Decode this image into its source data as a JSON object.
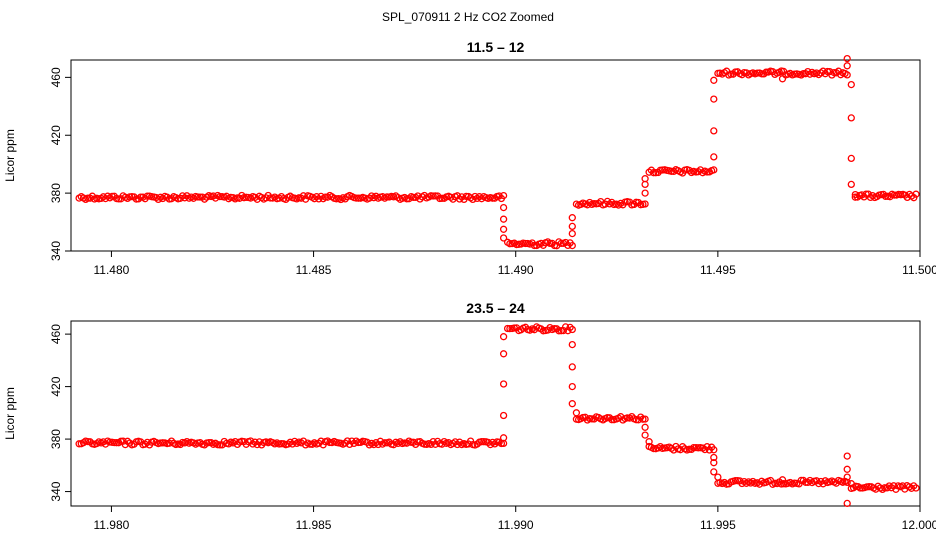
{
  "figure_title": "SPL_070911  2 Hz CO2 Zoomed",
  "colors": {
    "points": "#ff0000",
    "axis": "#000000",
    "background": "#ffffff"
  },
  "chart_data": [
    {
      "type": "scatter",
      "title": "11.5 – 12",
      "xlabel": "",
      "ylabel": "Licor ppm",
      "xlim": [
        11.479,
        11.5
      ],
      "ylim": [
        340,
        472
      ],
      "xticks": [
        {
          "value": 11.48,
          "label": "11.480"
        },
        {
          "value": 11.485,
          "label": "11.485"
        },
        {
          "value": 11.49,
          "label": "11.490"
        },
        {
          "value": 11.495,
          "label": "11.495"
        },
        {
          "value": 11.5,
          "label": "11.500"
        }
      ],
      "yticks": [
        {
          "value": 340,
          "label": "340"
        },
        {
          "value": 380,
          "label": "380"
        },
        {
          "value": 420,
          "label": "420"
        },
        {
          "value": 460,
          "label": "460"
        }
      ],
      "segments": [
        {
          "x0": 11.4792,
          "x1": 11.4897,
          "y": 377
        },
        {
          "x0": 11.4898,
          "x1": 11.4914,
          "y": 345
        },
        {
          "x0": 11.4915,
          "x1": 11.4932,
          "y": 373
        },
        {
          "x0": 11.4933,
          "x1": 11.4949,
          "y": 395
        },
        {
          "x0": 11.495,
          "x1": 11.4982,
          "y": 463
        },
        {
          "x0": 11.4984,
          "x1": 11.4999,
          "y": 378
        }
      ],
      "transition_points": [
        {
          "x": 11.4897,
          "y": 370
        },
        {
          "x": 11.4897,
          "y": 362
        },
        {
          "x": 11.4897,
          "y": 355
        },
        {
          "x": 11.4897,
          "y": 349
        },
        {
          "x": 11.4914,
          "y": 352
        },
        {
          "x": 11.4914,
          "y": 357
        },
        {
          "x": 11.4914,
          "y": 363
        },
        {
          "x": 11.4932,
          "y": 380
        },
        {
          "x": 11.4932,
          "y": 386
        },
        {
          "x": 11.4932,
          "y": 390
        },
        {
          "x": 11.4949,
          "y": 405
        },
        {
          "x": 11.4949,
          "y": 423
        },
        {
          "x": 11.4949,
          "y": 445
        },
        {
          "x": 11.4949,
          "y": 458
        },
        {
          "x": 11.4966,
          "y": 459
        },
        {
          "x": 11.4982,
          "y": 473
        },
        {
          "x": 11.4982,
          "y": 468
        },
        {
          "x": 11.4983,
          "y": 455
        },
        {
          "x": 11.4983,
          "y": 432
        },
        {
          "x": 11.4983,
          "y": 404
        },
        {
          "x": 11.4983,
          "y": 386
        },
        {
          "x": 11.4984,
          "y": 379
        }
      ]
    },
    {
      "type": "scatter",
      "title": "23.5 – 24",
      "xlabel": "",
      "ylabel": "Licor ppm",
      "xlim": [
        11.979,
        12.0
      ],
      "ylim": [
        329,
        470
      ],
      "xticks": [
        {
          "value": 11.98,
          "label": "11.980"
        },
        {
          "value": 11.985,
          "label": "11.985"
        },
        {
          "value": 11.99,
          "label": "11.990"
        },
        {
          "value": 11.995,
          "label": "11.995"
        },
        {
          "value": 12.0,
          "label": "12.000"
        }
      ],
      "yticks": [
        {
          "value": 340,
          "label": "340"
        },
        {
          "value": 380,
          "label": "380"
        },
        {
          "value": 420,
          "label": "420"
        },
        {
          "value": 460,
          "label": "460"
        }
      ],
      "segments": [
        {
          "x0": 11.9792,
          "x1": 11.9897,
          "y": 377
        },
        {
          "x0": 11.9898,
          "x1": 11.9914,
          "y": 464
        },
        {
          "x0": 11.9915,
          "x1": 11.9932,
          "y": 396
        },
        {
          "x0": 11.9933,
          "x1": 11.9949,
          "y": 373
        },
        {
          "x0": 11.995,
          "x1": 11.9982,
          "y": 347
        },
        {
          "x0": 11.9983,
          "x1": 11.9999,
          "y": 343
        }
      ],
      "transition_points": [
        {
          "x": 11.9897,
          "y": 381
        },
        {
          "x": 11.9897,
          "y": 398
        },
        {
          "x": 11.9897,
          "y": 422
        },
        {
          "x": 11.9897,
          "y": 445
        },
        {
          "x": 11.9897,
          "y": 458
        },
        {
          "x": 11.9914,
          "y": 452
        },
        {
          "x": 11.9914,
          "y": 435
        },
        {
          "x": 11.9914,
          "y": 420
        },
        {
          "x": 11.9914,
          "y": 407
        },
        {
          "x": 11.9915,
          "y": 400
        },
        {
          "x": 11.9932,
          "y": 389
        },
        {
          "x": 11.9932,
          "y": 383
        },
        {
          "x": 11.9933,
          "y": 378
        },
        {
          "x": 11.9949,
          "y": 366
        },
        {
          "x": 11.9949,
          "y": 362
        },
        {
          "x": 11.9949,
          "y": 355
        },
        {
          "x": 11.995,
          "y": 351
        },
        {
          "x": 11.9966,
          "y": 349
        },
        {
          "x": 11.9982,
          "y": 367
        },
        {
          "x": 11.9982,
          "y": 357
        },
        {
          "x": 11.9982,
          "y": 351
        },
        {
          "x": 11.9982,
          "y": 331
        },
        {
          "x": 11.9983,
          "y": 346
        }
      ]
    }
  ]
}
